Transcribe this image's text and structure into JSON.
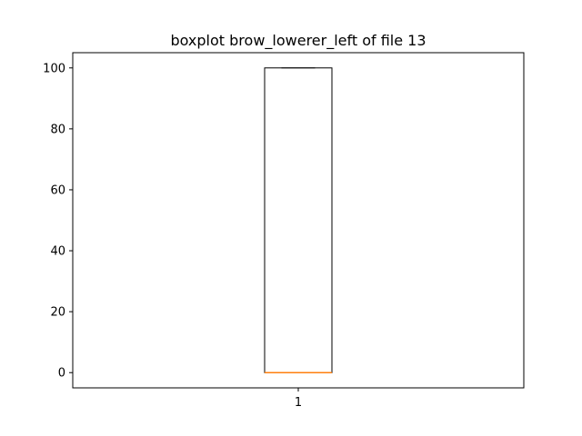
{
  "chart_data": {
    "type": "boxplot",
    "title": "boxplot brow_lowerer_left of file 13",
    "xlabel": "",
    "ylabel": "",
    "categories": [
      "1"
    ],
    "ylim": [
      -5,
      105
    ],
    "yticks": [
      0,
      20,
      40,
      60,
      80,
      100
    ],
    "grid": false,
    "boxes": [
      {
        "category": "1",
        "min": 0,
        "q1": 0,
        "median": 0,
        "q3": 100,
        "max": 100
      }
    ],
    "colors": {
      "box": "#000000",
      "median": "#ff7f0e"
    }
  }
}
